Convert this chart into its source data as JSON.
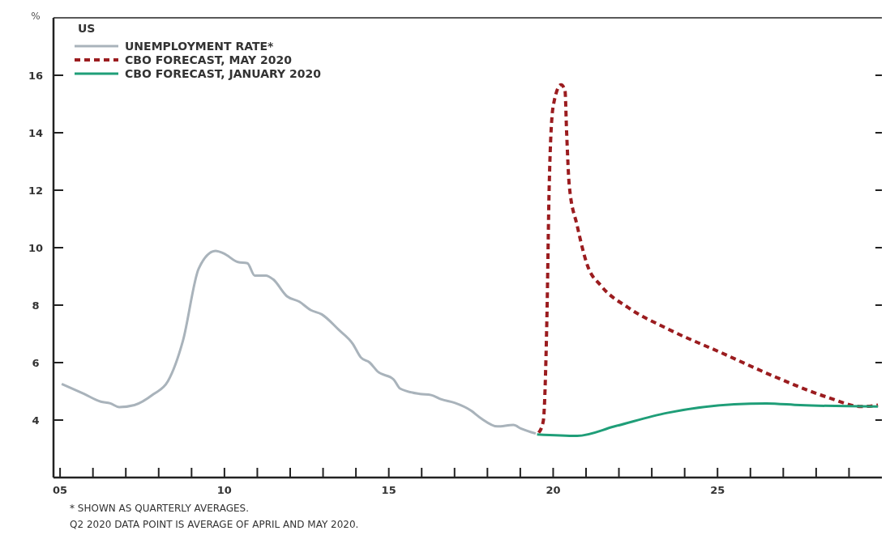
{
  "chart_data": {
    "type": "line",
    "ylabel": "%",
    "legend_title": "US",
    "legend": "top left",
    "grid": false,
    "marker": "none",
    "xlim": [
      2004.8,
      2030
    ],
    "xticks": [
      {
        "value": 2005,
        "label": "05"
      },
      {
        "value": 2006,
        "label": null
      },
      {
        "value": 2007,
        "label": null
      },
      {
        "value": 2008,
        "label": null
      },
      {
        "value": 2009,
        "label": null
      },
      {
        "value": 2010,
        "label": "10"
      },
      {
        "value": 2011,
        "label": null
      },
      {
        "value": 2012,
        "label": null
      },
      {
        "value": 2013,
        "label": null
      },
      {
        "value": 2014,
        "label": null
      },
      {
        "value": 2015,
        "label": "15"
      },
      {
        "value": 2016,
        "label": null
      },
      {
        "value": 2017,
        "label": null
      },
      {
        "value": 2018,
        "label": null
      },
      {
        "value": 2019,
        "label": null
      },
      {
        "value": 2020,
        "label": "20"
      },
      {
        "value": 2021,
        "label": null
      },
      {
        "value": 2022,
        "label": null
      },
      {
        "value": 2023,
        "label": null
      },
      {
        "value": 2024,
        "label": null
      },
      {
        "value": 2025,
        "label": "25"
      },
      {
        "value": 2026,
        "label": null
      },
      {
        "value": 2027,
        "label": null
      },
      {
        "value": 2028,
        "label": null
      },
      {
        "value": 2029,
        "label": null
      }
    ],
    "ylim": [
      2,
      18
    ],
    "yticks": [
      4,
      6,
      8,
      10,
      12,
      14,
      16
    ],
    "series": [
      {
        "name": "UNEMPLOYMENT RATE*",
        "color": "#a9b3bb",
        "line_style": "solid",
        "x": [
          2005.05,
          2005.73,
          2006.24,
          2006.53,
          2006.8,
          2007.26,
          2007.84,
          2008.28,
          2008.74,
          2009.22,
          2009.73,
          2009.98,
          2010.41,
          2010.7,
          2010.92,
          2011.26,
          2011.48,
          2011.9,
          2012.28,
          2012.62,
          2012.96,
          2013.47,
          2013.9,
          2014.15,
          2014.42,
          2014.66,
          2015.15,
          2015.34,
          2015.95,
          2016.29,
          2016.6,
          2017.0,
          2017.5,
          2017.82,
          2018.3,
          2018.79,
          2019.03,
          2019.47
        ],
        "values": [
          5.26,
          4.91,
          4.64,
          4.58,
          4.45,
          4.52,
          4.9,
          5.35,
          6.77,
          9.28,
          9.89,
          9.8,
          9.5,
          9.46,
          9.03,
          9.03,
          8.9,
          8.31,
          8.12,
          7.83,
          7.68,
          7.15,
          6.66,
          6.18,
          6.0,
          5.69,
          5.41,
          5.1,
          4.91,
          4.87,
          4.72,
          4.6,
          4.33,
          4.05,
          3.78,
          3.83,
          3.7,
          3.53
        ]
      },
      {
        "name": "CBO FORECAST, MAY 2020",
        "color": "#9b1c1f",
        "line_style": "dashed",
        "x": [
          2019.56,
          2019.7,
          2019.81,
          2019.88,
          2020.0,
          2020.24,
          2020.36,
          2020.41,
          2020.49,
          2020.73,
          2021.04,
          2021.46,
          2022.26,
          2023.47,
          2025.1,
          2026.72,
          2028.33,
          2029.39,
          2029.88
        ],
        "values": [
          3.56,
          3.97,
          7.57,
          12.16,
          14.92,
          15.67,
          15.47,
          14.0,
          12.16,
          10.77,
          9.39,
          8.67,
          7.93,
          7.18,
          6.35,
          5.52,
          4.8,
          4.47,
          4.52
        ]
      },
      {
        "name": "CBO FORECAST, JANUARY 2020",
        "color": "#1f9e78",
        "line_style": "solid",
        "x": [
          2019.51,
          2020.73,
          2021.87,
          2023.47,
          2025.51,
          2026.48,
          2027.52,
          2029.88
        ],
        "values": [
          3.5,
          3.45,
          3.78,
          4.25,
          4.55,
          4.58,
          4.52,
          4.47
        ]
      }
    ],
    "annotations": [
      "* SHOWN AS QUARTERLY AVERAGES.",
      "Q2 2020 DATA POINT IS AVERAGE OF APRIL AND MAY 2020."
    ]
  }
}
